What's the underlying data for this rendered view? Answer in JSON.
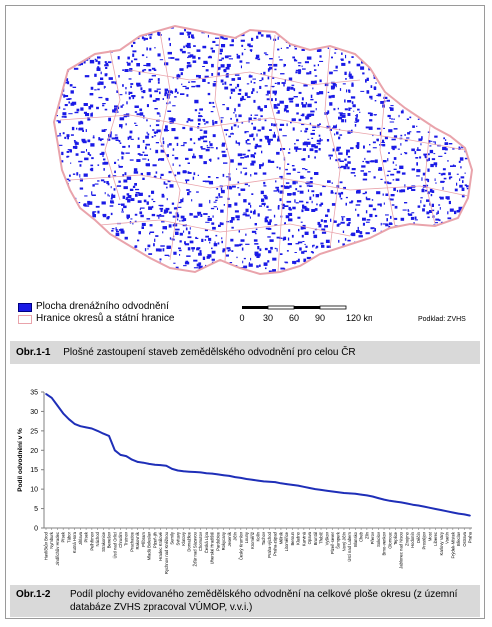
{
  "map": {
    "legend": [
      {
        "label": "Plocha drenážního odvodnění",
        "color": "#1a1ae6"
      },
      {
        "label": "Hranice okresů a státní hranice",
        "color": "#e9a3ab"
      }
    ],
    "scale_ticks": [
      "0",
      "30",
      "60",
      "90",
      "120 km"
    ],
    "source": "Podklad: ZVHS"
  },
  "figure1": {
    "label": "Obr.1-1",
    "caption": "Plošné zastoupení staveb zemědělského odvodnění pro celou ČR"
  },
  "figure2": {
    "label": "Obr.1-2",
    "caption": "Podíl plochy evidovaného zemědělského odvodnění na celkové ploše okresu (z územní databáze ZVHS zpracoval VÚMOP, v.v.i.)"
  },
  "chart_data": {
    "type": "line",
    "ylabel": "Podíl odvodnění v %",
    "xlabel": "",
    "ylim": [
      0,
      35
    ],
    "yticks": [
      0,
      5,
      10,
      15,
      20,
      25,
      30,
      35
    ],
    "grid": false,
    "color": "#1f2fb8",
    "categories": [
      "Havlíčkův Brod",
      "Nymburk",
      "Jindřichův Hradec",
      "Písek",
      "Tábor",
      "Kutná Hora",
      "Jihlava",
      "Písek",
      "Pelhřimov",
      "Náchod",
      "Strakonice",
      "Benešov",
      "Ústí nad Orlicí",
      "Chrudim",
      "Trutnov",
      "Prachatice",
      "Rakovník",
      "Příbram",
      "Mladá Boleslav",
      "Plzeň-jih",
      "Hradec Králové",
      "Rychnov nad Kněžnou",
      "Semily",
      "Svitavy",
      "Klatovy",
      "Domažlice",
      "Žďár nad Sázavou",
      "Chomutov",
      "Česká Lípa",
      "Uherské Hradiště",
      "Pardubice",
      "Rokycany",
      "Jeseník",
      "Jičín",
      "Český Krumlov",
      "Louny",
      "Kroměříž",
      "Kolín",
      "Tachov",
      "Praha-východ",
      "Praha-západ",
      "Mělník",
      "Litoměřice",
      "Beroun",
      "Kladno",
      "Karviná",
      "Opava",
      "Bruntál",
      "Třebíč",
      "Vyškov",
      "Plzeň-sever",
      "Šumperk",
      "Nový Jičín",
      "Ústí nad Labem",
      "Blansko",
      "Cheb",
      "Zlín",
      "Přerov",
      "Sokolov",
      "Brno-venkov",
      "Olomouc",
      "Teplice",
      "Jablonec nad Nisou",
      "Znojmo",
      "Hodonín",
      "Děčín",
      "Prostějov",
      "Most",
      "Liberec",
      "Karlovy Vary",
      "Vsetín",
      "Frýdek-Místek",
      "Břeclav",
      "Ostrava",
      "Praha"
    ],
    "values": [
      34.5,
      33.5,
      31.5,
      29.5,
      28.0,
      26.8,
      26.2,
      25.9,
      25.6,
      25.0,
      24.3,
      23.7,
      20.0,
      18.8,
      18.5,
      17.6,
      17.0,
      16.8,
      16.5,
      16.3,
      16.2,
      16.0,
      15.2,
      14.8,
      14.6,
      14.5,
      14.4,
      14.3,
      14.1,
      14.0,
      13.8,
      13.6,
      13.4,
      13.1,
      12.9,
      12.6,
      12.4,
      12.2,
      12.0,
      11.9,
      11.8,
      11.5,
      11.3,
      11.1,
      10.9,
      10.6,
      10.3,
      10.0,
      9.8,
      9.6,
      9.4,
      9.2,
      9.0,
      8.9,
      8.8,
      8.6,
      8.4,
      8.1,
      7.7,
      7.3,
      7.0,
      6.8,
      6.6,
      6.3,
      6.0,
      5.8,
      5.5,
      5.2,
      4.9,
      4.6,
      4.3,
      4.0,
      3.7,
      3.5,
      3.2
    ]
  }
}
